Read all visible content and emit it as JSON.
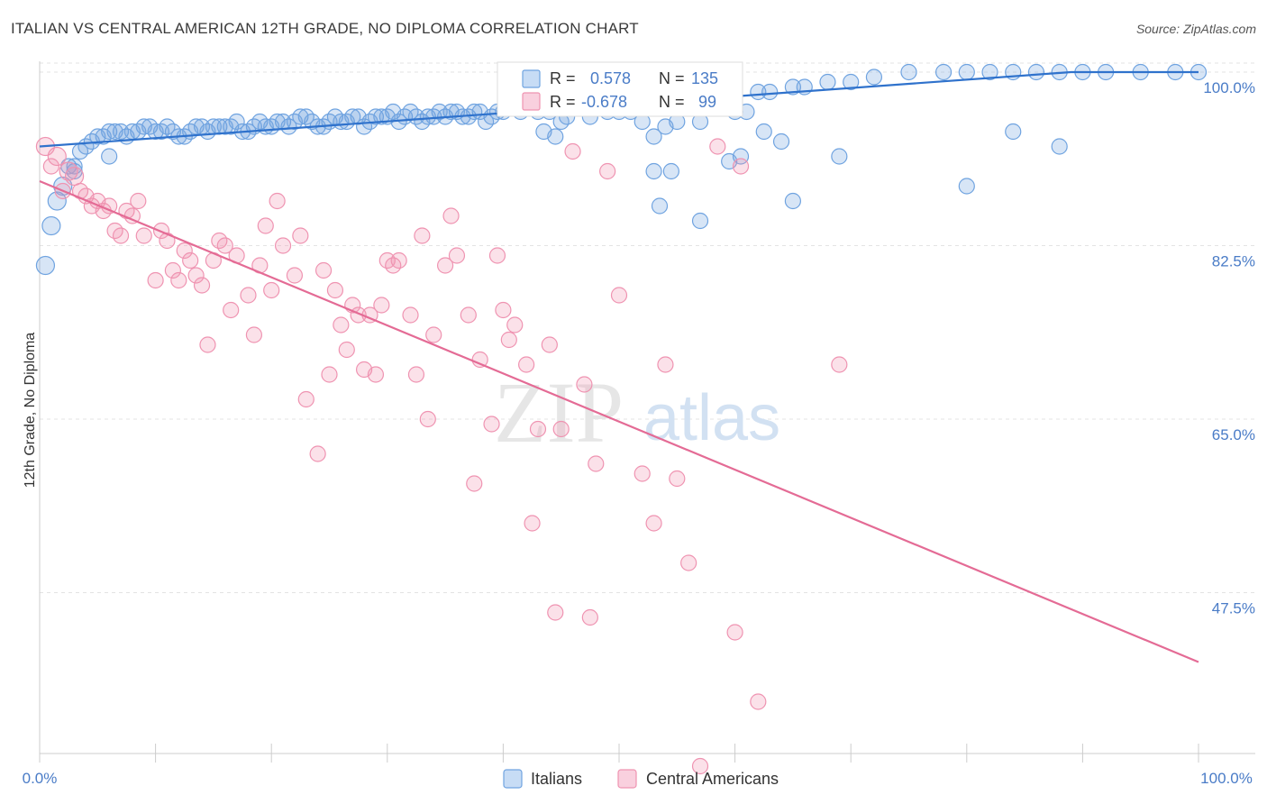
{
  "header": {
    "title": "ITALIAN VS CENTRAL AMERICAN 12TH GRADE, NO DIPLOMA CORRELATION CHART",
    "source": "Source: ZipAtlas.com"
  },
  "watermark": {
    "part1": "ZIP",
    "part2": "atlas"
  },
  "legend_box": {
    "rows": [
      {
        "r_label": "R =",
        "r_value": "0.578",
        "n_label": "N =",
        "n_value": "135",
        "color": "#6fa3e0"
      },
      {
        "r_label": "R =",
        "r_value": "-0.678",
        "n_label": "N =",
        "n_value": "99",
        "color": "#ef93b1"
      }
    ]
  },
  "bottom_legend": {
    "items": [
      "Italians",
      "Central Americans"
    ]
  },
  "chart_data": {
    "type": "scatter",
    "title": "ITALIAN VS CENTRAL AMERICAN 12TH GRADE, NO DIPLOMA CORRELATION CHART",
    "xlabel": "",
    "ylabel": "12th Grade, No Diploma",
    "xlim": [
      0,
      100
    ],
    "ylim": [
      31.5,
      100
    ],
    "x_ticks_labels": [
      "0.0%",
      "100.0%"
    ],
    "y_ticks": [
      100,
      82.5,
      65,
      47.5
    ],
    "y_ticks_labels": [
      "100.0%",
      "82.5%",
      "65.0%",
      "47.5%"
    ],
    "grid": true,
    "series": [
      {
        "name": "Italians",
        "color": "#6fa3e0",
        "trend": {
          "x": [
            0,
            89,
            100
          ],
          "y": [
            92.5,
            100,
            100
          ]
        },
        "points": [
          [
            0.5,
            80.5
          ],
          [
            1,
            84.5
          ],
          [
            1.5,
            87
          ],
          [
            2,
            88.5
          ],
          [
            2.5,
            90.5
          ],
          [
            3,
            90.5
          ],
          [
            3.5,
            92
          ],
          [
            4,
            92.5
          ],
          [
            4.5,
            93
          ],
          [
            5,
            93.5
          ],
          [
            5.5,
            93.5
          ],
          [
            6,
            94
          ],
          [
            6.5,
            94
          ],
          [
            7,
            94
          ],
          [
            7.5,
            93.5
          ],
          [
            8,
            94
          ],
          [
            8.5,
            94
          ],
          [
            9,
            94.5
          ],
          [
            9.5,
            94.5
          ],
          [
            10,
            94
          ],
          [
            10.5,
            94
          ],
          [
            11,
            94.5
          ],
          [
            11.5,
            94
          ],
          [
            12,
            93.5
          ],
          [
            12.5,
            93.5
          ],
          [
            13,
            94
          ],
          [
            13.5,
            94.5
          ],
          [
            14,
            94.5
          ],
          [
            14.5,
            94
          ],
          [
            15,
            94.5
          ],
          [
            15.5,
            94.5
          ],
          [
            16,
            94.5
          ],
          [
            16.5,
            94.5
          ],
          [
            17,
            95
          ],
          [
            17.5,
            94
          ],
          [
            18,
            94
          ],
          [
            18.5,
            94.5
          ],
          [
            19,
            95
          ],
          [
            19.5,
            94.5
          ],
          [
            20,
            94.5
          ],
          [
            20.5,
            95
          ],
          [
            21,
            95
          ],
          [
            21.5,
            94.5
          ],
          [
            22,
            95
          ],
          [
            22.5,
            95.5
          ],
          [
            23,
            95.5
          ],
          [
            23.5,
            95
          ],
          [
            24,
            94.5
          ],
          [
            24.5,
            94.5
          ],
          [
            25,
            95
          ],
          [
            25.5,
            95.5
          ],
          [
            26,
            95
          ],
          [
            26.5,
            95
          ],
          [
            27,
            95.5
          ],
          [
            27.5,
            95.5
          ],
          [
            28,
            94.5
          ],
          [
            28.5,
            95
          ],
          [
            29,
            95.5
          ],
          [
            29.5,
            95.5
          ],
          [
            30,
            95.5
          ],
          [
            30.5,
            96
          ],
          [
            31,
            95
          ],
          [
            31.5,
            95.5
          ],
          [
            32,
            96
          ],
          [
            32.5,
            95.5
          ],
          [
            33,
            95
          ],
          [
            33.5,
            95.5
          ],
          [
            34,
            95.5
          ],
          [
            34.5,
            96
          ],
          [
            35,
            95.5
          ],
          [
            35.5,
            96
          ],
          [
            36,
            96
          ],
          [
            36.5,
            95.5
          ],
          [
            37,
            95.5
          ],
          [
            37.5,
            96
          ],
          [
            38,
            96
          ],
          [
            38.5,
            95
          ],
          [
            39,
            95.5
          ],
          [
            39.5,
            96
          ],
          [
            40,
            96
          ],
          [
            40.5,
            96.5
          ],
          [
            41,
            97
          ],
          [
            41.5,
            96
          ],
          [
            42,
            96.5
          ],
          [
            42.5,
            96.5
          ],
          [
            43,
            96
          ],
          [
            43.5,
            94
          ],
          [
            44,
            96
          ],
          [
            44.5,
            93.5
          ],
          [
            45,
            95
          ],
          [
            45.5,
            95.5
          ],
          [
            46,
            96.5
          ],
          [
            46.5,
            97
          ],
          [
            47,
            96.5
          ],
          [
            47.5,
            95.5
          ],
          [
            48,
            97.5
          ],
          [
            48.5,
            97.5
          ],
          [
            49,
            96
          ],
          [
            50,
            96
          ],
          [
            50.5,
            98
          ],
          [
            51,
            96
          ],
          [
            52,
            95
          ],
          [
            53,
            93.5
          ],
          [
            54,
            94.5
          ],
          [
            55,
            95
          ],
          [
            56,
            97
          ],
          [
            57,
            95
          ],
          [
            58,
            97
          ],
          [
            59,
            97.5
          ],
          [
            60,
            96
          ],
          [
            61,
            96
          ],
          [
            62,
            98
          ],
          [
            63,
            98
          ],
          [
            65,
            98.5
          ],
          [
            66,
            98.5
          ],
          [
            68,
            99
          ],
          [
            70,
            99
          ],
          [
            72,
            99.5
          ],
          [
            75,
            100
          ],
          [
            78,
            100
          ],
          [
            80,
            100
          ],
          [
            82,
            100
          ],
          [
            84,
            100
          ],
          [
            86,
            100
          ],
          [
            88,
            100
          ],
          [
            90,
            100
          ],
          [
            92,
            100
          ],
          [
            95,
            100
          ],
          [
            98,
            100
          ],
          [
            100,
            100
          ],
          [
            59.5,
            91
          ],
          [
            53.5,
            86.5
          ],
          [
            54.5,
            90
          ],
          [
            53,
            90
          ],
          [
            57,
            85
          ],
          [
            60.5,
            91.5
          ],
          [
            62.5,
            94
          ],
          [
            64,
            93
          ],
          [
            65,
            87
          ],
          [
            69,
            91.5
          ],
          [
            80,
            88.5
          ],
          [
            84,
            94
          ],
          [
            88,
            92.5
          ],
          [
            6,
            91.5
          ],
          [
            3,
            90
          ]
        ]
      },
      {
        "name": "Central Americans",
        "color": "#ef93b1",
        "trend": {
          "x": [
            0,
            100
          ],
          "y": [
            89,
            40.5
          ]
        },
        "points": [
          [
            0.5,
            92.5
          ],
          [
            1.5,
            91.5
          ],
          [
            2.5,
            90
          ],
          [
            3,
            89.5
          ],
          [
            3.5,
            88
          ],
          [
            4,
            87.5
          ],
          [
            4.5,
            86.5
          ],
          [
            5,
            87
          ],
          [
            5.5,
            86
          ],
          [
            6,
            86.5
          ],
          [
            6.5,
            84
          ],
          [
            7,
            83.5
          ],
          [
            7.5,
            86
          ],
          [
            8,
            85.5
          ],
          [
            8.5,
            87
          ],
          [
            9,
            83.5
          ],
          [
            10,
            79
          ],
          [
            10.5,
            84
          ],
          [
            11,
            83
          ],
          [
            11.5,
            80
          ],
          [
            12,
            79
          ],
          [
            12.5,
            82
          ],
          [
            13,
            81
          ],
          [
            13.5,
            79.5
          ],
          [
            14,
            78.5
          ],
          [
            14.5,
            72.5
          ],
          [
            15,
            81
          ],
          [
            15.5,
            83
          ],
          [
            16,
            82.5
          ],
          [
            16.5,
            76
          ],
          [
            17,
            81.5
          ],
          [
            18,
            77.5
          ],
          [
            18.5,
            73.5
          ],
          [
            19,
            80.5
          ],
          [
            19.5,
            84.5
          ],
          [
            20,
            78
          ],
          [
            20.5,
            87
          ],
          [
            21,
            82.5
          ],
          [
            22,
            79.5
          ],
          [
            22.5,
            83.5
          ],
          [
            23,
            67
          ],
          [
            24,
            61.5
          ],
          [
            24.5,
            80
          ],
          [
            25,
            69.5
          ],
          [
            25.5,
            78
          ],
          [
            26,
            74.5
          ],
          [
            26.5,
            72
          ],
          [
            27,
            76.5
          ],
          [
            27.5,
            75.5
          ],
          [
            28,
            70
          ],
          [
            28.5,
            75.5
          ],
          [
            29,
            69.5
          ],
          [
            29.5,
            76.5
          ],
          [
            30,
            81
          ],
          [
            30.5,
            80.5
          ],
          [
            31,
            81
          ],
          [
            32,
            75.5
          ],
          [
            32.5,
            69.5
          ],
          [
            33,
            83.5
          ],
          [
            33.5,
            65
          ],
          [
            34,
            73.5
          ],
          [
            35,
            80.5
          ],
          [
            35.5,
            85.5
          ],
          [
            36,
            81.5
          ],
          [
            37,
            75.5
          ],
          [
            37.5,
            58.5
          ],
          [
            38,
            71
          ],
          [
            39,
            64.5
          ],
          [
            39.5,
            81.5
          ],
          [
            40,
            76
          ],
          [
            40.5,
            73
          ],
          [
            41,
            74.5
          ],
          [
            42,
            70.5
          ],
          [
            42.5,
            54.5
          ],
          [
            43,
            64
          ],
          [
            44,
            72.5
          ],
          [
            44.5,
            45.5
          ],
          [
            45,
            64
          ],
          [
            46,
            92
          ],
          [
            47,
            68.5
          ],
          [
            47.5,
            45
          ],
          [
            48,
            60.5
          ],
          [
            49,
            90
          ],
          [
            50,
            77.5
          ],
          [
            52,
            59.5
          ],
          [
            53,
            54.5
          ],
          [
            54,
            70.5
          ],
          [
            55,
            59
          ],
          [
            56,
            50.5
          ],
          [
            57,
            30
          ],
          [
            60,
            43.5
          ],
          [
            62,
            36.5
          ],
          [
            1,
            90.5
          ],
          [
            2,
            88
          ],
          [
            58.5,
            92.5
          ],
          [
            60.5,
            90.5
          ],
          [
            69,
            70.5
          ]
        ]
      }
    ]
  }
}
